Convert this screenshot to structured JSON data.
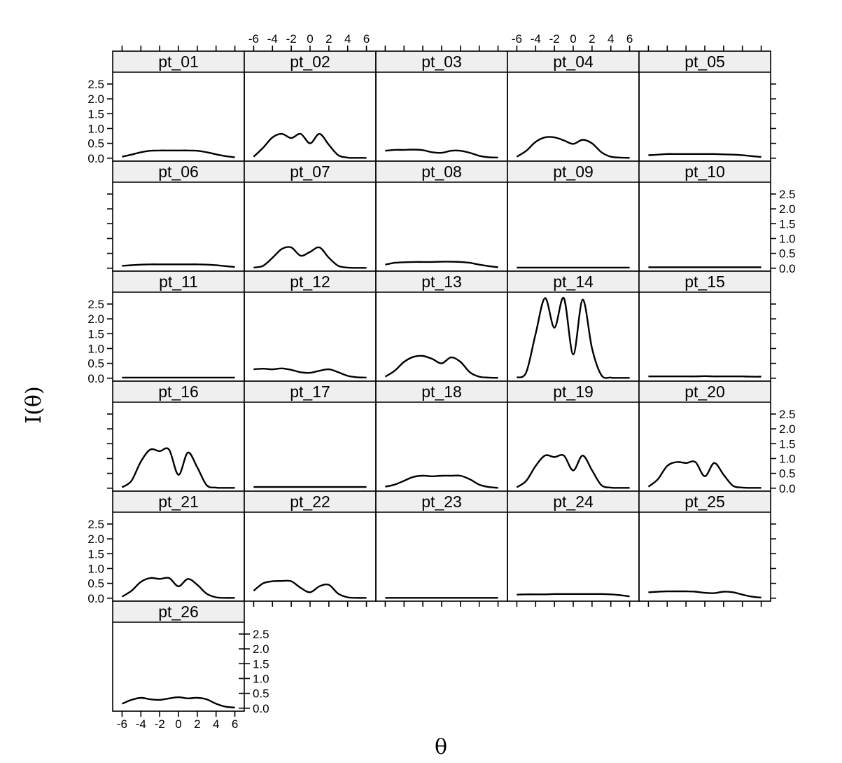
{
  "chart_data": {
    "type": "line",
    "layout": "trellis 5 columns x 6 rows",
    "xlabel": "θ",
    "ylabel": "I(θ)",
    "xlim": [
      -7,
      7
    ],
    "ylim": [
      -0.1,
      2.9
    ],
    "x_ticks": [
      -6,
      -4,
      -2,
      0,
      2,
      4,
      6
    ],
    "x_tick_labels": [
      "-6",
      "-4",
      "-2",
      "0",
      "2",
      "4",
      "6"
    ],
    "y_ticks": [
      0,
      0.5,
      1,
      1.5,
      2,
      2.5
    ],
    "y_tick_labels": [
      "0.0",
      "0.5",
      "1.0",
      "1.5",
      "2.0",
      "2.5"
    ],
    "line_color": "#000000",
    "strip_color": "#efefef",
    "x_values": [
      -6,
      -5,
      -4,
      -3,
      -2,
      -1,
      0,
      1,
      2,
      3,
      4,
      5,
      6
    ],
    "panels": [
      {
        "name": "pt_01",
        "y": [
          0.05,
          0.12,
          0.2,
          0.25,
          0.26,
          0.26,
          0.26,
          0.26,
          0.25,
          0.2,
          0.13,
          0.07,
          0.03
        ]
      },
      {
        "name": "pt_02",
        "y": [
          0.05,
          0.35,
          0.7,
          0.82,
          0.68,
          0.82,
          0.5,
          0.82,
          0.45,
          0.1,
          0.02,
          0.01,
          0.01
        ]
      },
      {
        "name": "pt_03",
        "y": [
          0.25,
          0.28,
          0.28,
          0.29,
          0.27,
          0.2,
          0.18,
          0.25,
          0.25,
          0.18,
          0.08,
          0.03,
          0.02
        ]
      },
      {
        "name": "pt_04",
        "y": [
          0.05,
          0.25,
          0.55,
          0.7,
          0.7,
          0.6,
          0.48,
          0.62,
          0.5,
          0.2,
          0.05,
          0.02,
          0.01
        ]
      },
      {
        "name": "pt_05",
        "y": [
          0.1,
          0.12,
          0.14,
          0.14,
          0.14,
          0.14,
          0.14,
          0.14,
          0.13,
          0.12,
          0.1,
          0.07,
          0.04
        ]
      },
      {
        "name": "pt_06",
        "y": [
          0.08,
          0.1,
          0.12,
          0.13,
          0.13,
          0.13,
          0.13,
          0.13,
          0.13,
          0.12,
          0.1,
          0.07,
          0.04
        ]
      },
      {
        "name": "pt_07",
        "y": [
          0.02,
          0.08,
          0.35,
          0.65,
          0.7,
          0.42,
          0.55,
          0.7,
          0.35,
          0.08,
          0.02,
          0.01,
          0.01
        ]
      },
      {
        "name": "pt_08",
        "y": [
          0.12,
          0.18,
          0.2,
          0.21,
          0.21,
          0.21,
          0.22,
          0.22,
          0.21,
          0.18,
          0.12,
          0.07,
          0.03
        ]
      },
      {
        "name": "pt_09",
        "y": [
          0.02,
          0.02,
          0.02,
          0.02,
          0.02,
          0.02,
          0.02,
          0.02,
          0.02,
          0.02,
          0.02,
          0.02,
          0.02
        ]
      },
      {
        "name": "pt_10",
        "y": [
          0.03,
          0.03,
          0.03,
          0.03,
          0.03,
          0.03,
          0.03,
          0.03,
          0.03,
          0.03,
          0.03,
          0.03,
          0.03
        ]
      },
      {
        "name": "pt_11",
        "y": [
          0.02,
          0.02,
          0.02,
          0.02,
          0.02,
          0.02,
          0.02,
          0.02,
          0.02,
          0.02,
          0.02,
          0.02,
          0.02
        ]
      },
      {
        "name": "pt_12",
        "y": [
          0.3,
          0.32,
          0.3,
          0.33,
          0.28,
          0.2,
          0.18,
          0.25,
          0.3,
          0.2,
          0.08,
          0.03,
          0.02
        ]
      },
      {
        "name": "pt_13",
        "y": [
          0.05,
          0.25,
          0.55,
          0.72,
          0.75,
          0.65,
          0.5,
          0.7,
          0.55,
          0.2,
          0.05,
          0.02,
          0.01
        ]
      },
      {
        "name": "pt_14",
        "y": [
          0.02,
          0.2,
          1.5,
          2.7,
          1.7,
          2.7,
          0.8,
          2.65,
          1.0,
          0.1,
          0.02,
          0.01,
          0.01
        ]
      },
      {
        "name": "pt_15",
        "y": [
          0.06,
          0.06,
          0.06,
          0.06,
          0.06,
          0.06,
          0.07,
          0.06,
          0.06,
          0.06,
          0.06,
          0.05,
          0.05
        ]
      },
      {
        "name": "pt_16",
        "y": [
          0.03,
          0.25,
          0.9,
          1.3,
          1.25,
          1.3,
          0.45,
          1.2,
          0.7,
          0.1,
          0.02,
          0.01,
          0.01
        ]
      },
      {
        "name": "pt_17",
        "y": [
          0.04,
          0.04,
          0.04,
          0.04,
          0.04,
          0.04,
          0.04,
          0.04,
          0.04,
          0.04,
          0.04,
          0.04,
          0.04
        ]
      },
      {
        "name": "pt_18",
        "y": [
          0.05,
          0.12,
          0.25,
          0.38,
          0.42,
          0.4,
          0.42,
          0.42,
          0.42,
          0.3,
          0.12,
          0.04,
          0.01
        ]
      },
      {
        "name": "pt_19",
        "y": [
          0.03,
          0.25,
          0.75,
          1.1,
          1.05,
          1.1,
          0.6,
          1.1,
          0.6,
          0.1,
          0.02,
          0.01,
          0.01
        ]
      },
      {
        "name": "pt_20",
        "y": [
          0.05,
          0.3,
          0.75,
          0.88,
          0.85,
          0.88,
          0.4,
          0.85,
          0.45,
          0.08,
          0.02,
          0.01,
          0.01
        ]
      },
      {
        "name": "pt_21",
        "y": [
          0.05,
          0.25,
          0.55,
          0.68,
          0.65,
          0.68,
          0.4,
          0.65,
          0.45,
          0.15,
          0.03,
          0.01,
          0.01
        ]
      },
      {
        "name": "pt_22",
        "y": [
          0.25,
          0.5,
          0.57,
          0.58,
          0.57,
          0.35,
          0.2,
          0.4,
          0.45,
          0.15,
          0.03,
          0.01,
          0.01
        ]
      },
      {
        "name": "pt_23",
        "y": [
          0.01,
          0.01,
          0.01,
          0.01,
          0.01,
          0.01,
          0.01,
          0.01,
          0.01,
          0.01,
          0.01,
          0.01,
          0.01
        ]
      },
      {
        "name": "pt_24",
        "y": [
          0.12,
          0.13,
          0.13,
          0.13,
          0.14,
          0.14,
          0.14,
          0.14,
          0.14,
          0.14,
          0.13,
          0.1,
          0.06
        ]
      },
      {
        "name": "pt_25",
        "y": [
          0.2,
          0.22,
          0.23,
          0.23,
          0.23,
          0.22,
          0.18,
          0.17,
          0.22,
          0.2,
          0.12,
          0.05,
          0.02
        ]
      },
      {
        "name": "pt_26",
        "y": [
          0.15,
          0.28,
          0.35,
          0.3,
          0.28,
          0.33,
          0.37,
          0.33,
          0.35,
          0.3,
          0.15,
          0.05,
          0.02
        ]
      }
    ]
  }
}
